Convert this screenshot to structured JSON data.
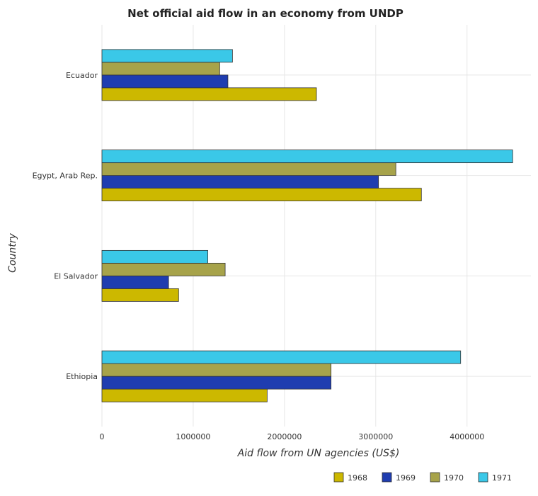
{
  "chart_data": {
    "type": "bar",
    "orientation": "horizontal",
    "title": "Net official aid flow in an economy from UNDP",
    "xlabel": "Aid flow from UN agencies (US$)",
    "ylabel": "Country",
    "categories": [
      "Ecuador",
      "Egypt, Arab Rep.",
      "El Salvador",
      "Ethiopia"
    ],
    "series": [
      {
        "name": "1968",
        "color": "#ccb800",
        "values": [
          2350000,
          3500000,
          840000,
          1810000
        ]
      },
      {
        "name": "1969",
        "color": "#1f3db0",
        "values": [
          1380000,
          3030000,
          730000,
          2510000
        ]
      },
      {
        "name": "1970",
        "color": "#a7a34a",
        "values": [
          1290000,
          3220000,
          1350000,
          2510000
        ]
      },
      {
        "name": "1971",
        "color": "#3ac8e8",
        "values": [
          1430000,
          4500000,
          1160000,
          3930000
        ]
      }
    ],
    "xlim": [
      0,
      4700000
    ],
    "xticks": [
      0,
      1000000,
      2000000,
      3000000,
      4000000
    ],
    "xtick_labels": [
      "0",
      "1000000",
      "2000000",
      "3000000",
      "4000000"
    ],
    "grid": true,
    "legend_position": "bottom-right"
  }
}
